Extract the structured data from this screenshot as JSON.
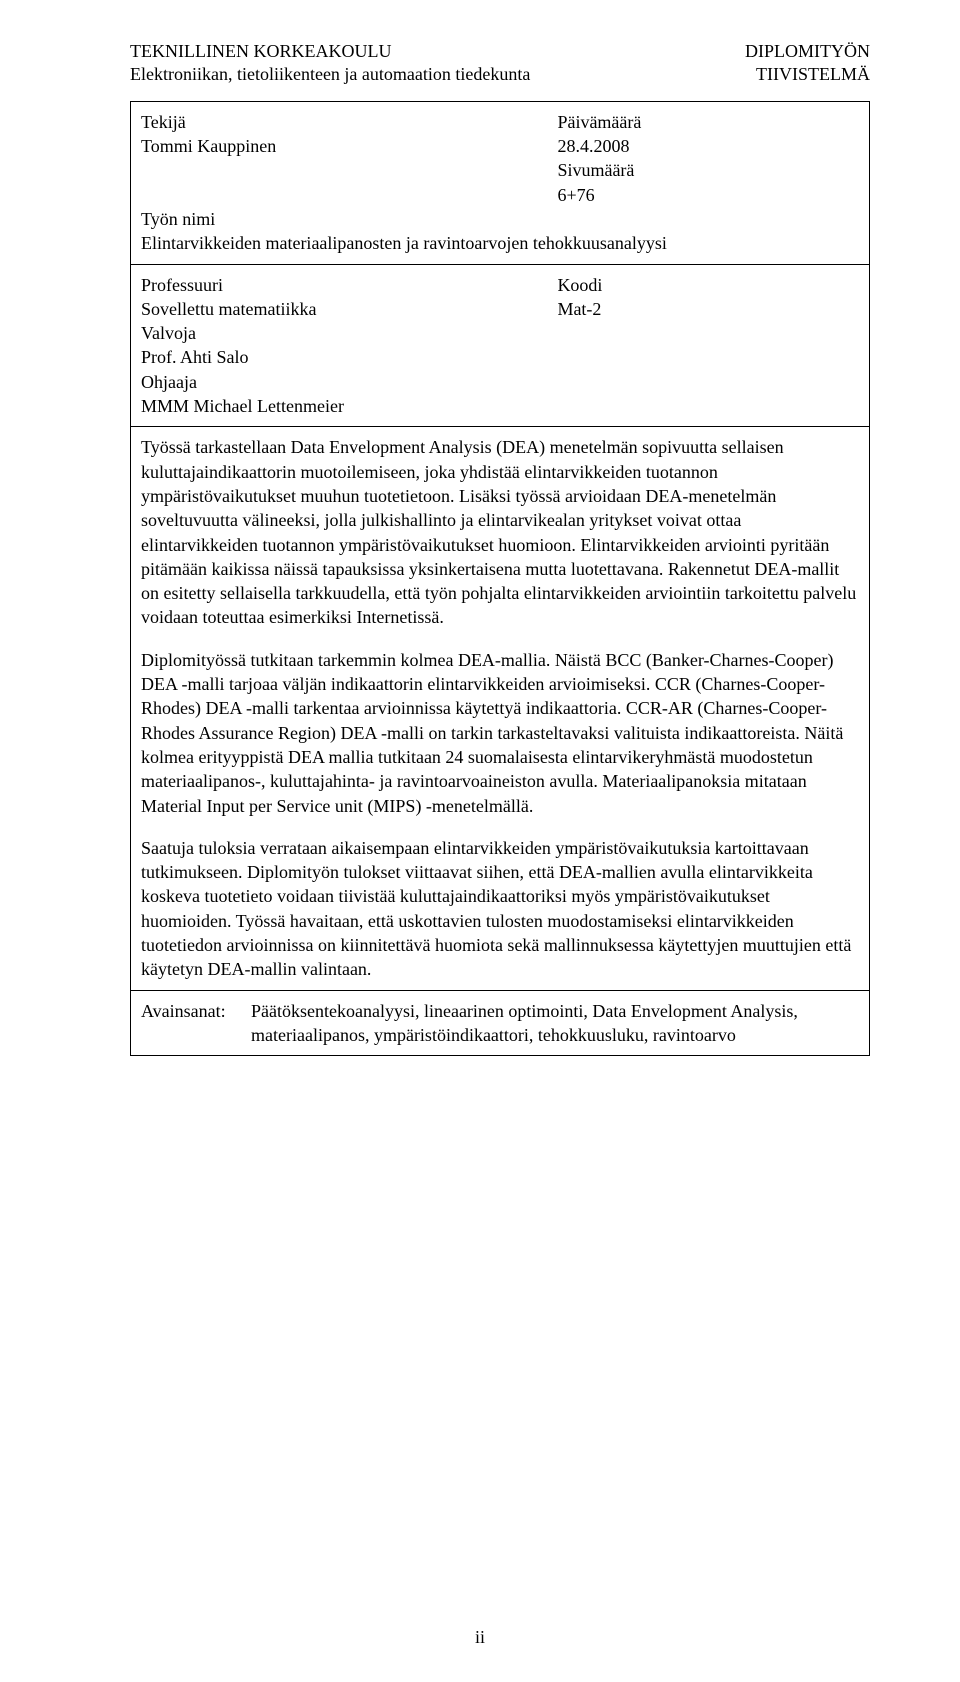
{
  "header": {
    "left_line1": "TEKNILLINEN KORKEAKOULU",
    "left_line2": "Elektroniikan, tietoliikenteen ja automaation tiedekunta",
    "right_line1": "DIPLOMITYÖN",
    "right_line2": "TIIVISTELMÄ"
  },
  "top_block": {
    "author_label": "Tekijä",
    "author_name": "Tommi Kauppinen",
    "date_label": "Päivämäärä",
    "date_value": "28.4.2008",
    "pages_label": "Sivumäärä",
    "pages_value": "6+76",
    "title_label": "Työn nimi",
    "title_value": "Elintarvikkeiden materiaalipanosten ja ravintoarvojen tehokkuusanalyysi"
  },
  "meta_block": {
    "chair_label": "Professuuri",
    "chair_value": "Sovellettu matematiikka",
    "code_label": "Koodi",
    "code_value": "Mat-2",
    "supervisor_label": "Valvoja",
    "supervisor_value": "Prof. Ahti Salo",
    "instructor_label": "Ohjaaja",
    "instructor_value": "MMM Michael Lettenmeier"
  },
  "abstract": {
    "p1": "Työssä tarkastellaan Data Envelopment Analysis (DEA) menetelmän sopivuutta sellaisen kuluttajaindikaattorin muotoilemiseen, joka yhdistää elintarvikkeiden tuotannon ympäristövaikutukset muuhun tuotetietoon. Lisäksi työssä arvioidaan DEA-menetelmän soveltuvuutta välineeksi, jolla julkishallinto ja elintarvikealan yritykset voivat ottaa elintarvikkeiden tuotannon ympäristövaikutukset huomioon. Elintarvikkeiden arviointi pyritään pitämään kaikissa näissä tapauksissa yksinkertaisena mutta luotettavana. Rakennetut DEA-mallit on esitetty sellaisella tarkkuudella, että työn pohjalta elintarvikkeiden arviointiin tarkoitettu palvelu voidaan toteuttaa esimerkiksi Internetissä.",
    "p2": "Diplomityössä tutkitaan tarkemmin kolmea DEA-mallia. Näistä BCC (Banker-Charnes-Cooper) DEA -malli tarjoaa väljän indikaattorin elintarvikkeiden arvioimiseksi. CCR (Charnes-Cooper-Rhodes) DEA -malli tarkentaa arvioinnissa käytettyä indikaattoria. CCR-AR (Charnes-Cooper-Rhodes Assurance Region) DEA -malli on tarkin tarkasteltavaksi valituista indikaattoreista. Näitä kolmea erityyppistä DEA mallia tutkitaan 24 suomalaisesta elintarvikeryhmästä muodostetun materiaalipanos-, kuluttajahinta- ja ravintoarvoaineiston avulla. Materiaalipanoksia mitataan Material Input per Service unit (MIPS) -menetelmällä.",
    "p3": "Saatuja tuloksia verrataan aikaisempaan elintarvikkeiden ympäristövaikutuksia kartoittavaan tutkimukseen. Diplomityön tulokset viittaavat siihen, että DEA-mallien avulla elintarvikkeita koskeva tuotetieto voidaan tiivistää kuluttajaindikaattoriksi myös ympäristövaikutukset huomioiden. Työssä havaitaan, että uskottavien tulosten muodostamiseksi elintarvikkeiden tuotetiedon arvioinnissa on kiinnitettävä huomiota sekä mallinnuksessa käytettyjen muuttujien että käytetyn DEA-mallin valintaan."
  },
  "keywords": {
    "label": "Avainsanat:",
    "value": "Päätöksentekoanalyysi, lineaarinen optimointi, Data Envelopment Analysis, materiaalipanos, ympäristöindikaattori, tehokkuusluku, ravintoarvo"
  },
  "page_number": "ii"
}
